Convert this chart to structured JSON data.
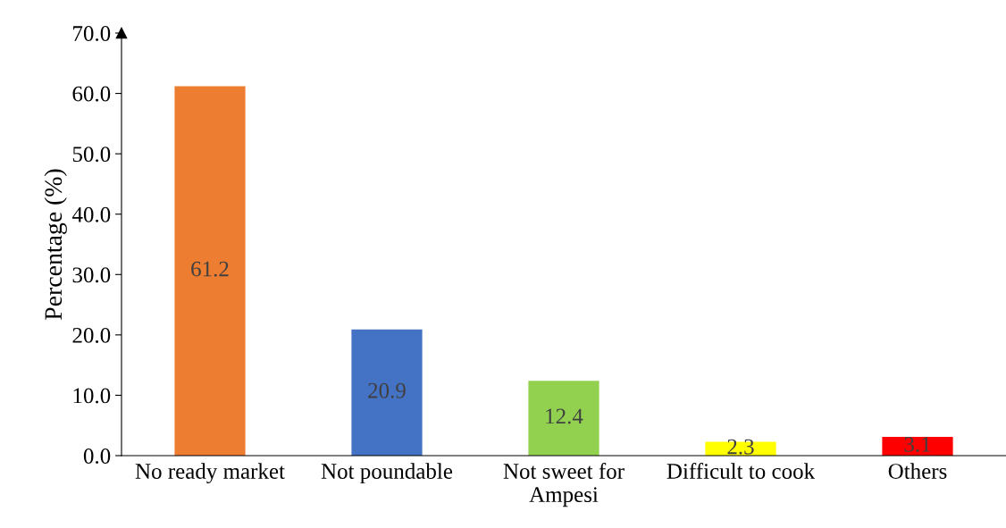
{
  "chart_data": {
    "type": "bar",
    "ylabel": "Percentage (%)",
    "categories": [
      "No ready market",
      "Not poundable",
      "Not sweet for\nAmpesi",
      "Difficult to cook",
      "Others"
    ],
    "values": [
      61.2,
      20.9,
      12.4,
      2.3,
      3.1
    ],
    "colors": [
      "#ed7d31",
      "#4472c4",
      "#92d050",
      "#ffff00",
      "#ff0000"
    ],
    "ylim": [
      0,
      70
    ],
    "yticks": [
      {
        "value": 0,
        "label": "0.0"
      },
      {
        "value": 10,
        "label": "10.0"
      },
      {
        "value": 20,
        "label": "20.0"
      },
      {
        "value": 30,
        "label": "30.0"
      },
      {
        "value": 40,
        "label": "40.0"
      },
      {
        "value": 50,
        "label": "50.0"
      },
      {
        "value": 60,
        "label": "60.0"
      },
      {
        "value": 70,
        "label": "70.0"
      }
    ],
    "data_labels": true,
    "grid": false,
    "legend": false
  }
}
